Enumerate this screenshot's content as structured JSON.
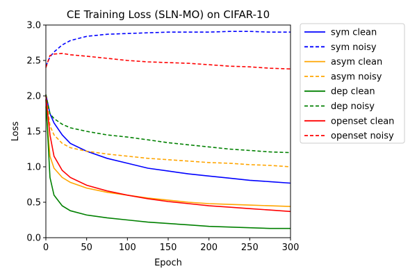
{
  "chart_data": {
    "type": "line",
    "title": "CE Training Loss (SLN-MO) on CIFAR-10",
    "xlabel": "Epoch",
    "ylabel": "Loss",
    "xlim": [
      0,
      300
    ],
    "ylim": [
      0.0,
      3.0
    ],
    "x_ticks": [
      0,
      50,
      100,
      150,
      200,
      250,
      300
    ],
    "y_ticks": [
      0.0,
      0.5,
      1.0,
      1.5,
      2.0,
      2.5,
      3.0
    ],
    "x_tick_labels": [
      "0",
      "50",
      "100",
      "150",
      "200",
      "250",
      "300"
    ],
    "y_tick_labels": [
      "0.0",
      "0.5",
      "1.0",
      "1.5",
      "2.0",
      "2.5",
      "3.0"
    ],
    "grid": false,
    "legend_position": "outside-right-top",
    "series": [
      {
        "name": "sym clean",
        "color": "#0000ff",
        "dashed": false,
        "x": [
          0,
          5,
          10,
          20,
          30,
          50,
          75,
          100,
          125,
          150,
          175,
          200,
          225,
          250,
          275,
          300
        ],
        "y": [
          2.02,
          1.75,
          1.62,
          1.45,
          1.33,
          1.22,
          1.12,
          1.05,
          0.98,
          0.94,
          0.9,
          0.87,
          0.84,
          0.81,
          0.79,
          0.77
        ]
      },
      {
        "name": "sym noisy",
        "color": "#0000ff",
        "dashed": true,
        "x": [
          0,
          5,
          10,
          20,
          30,
          50,
          75,
          100,
          125,
          150,
          175,
          200,
          225,
          250,
          275,
          300
        ],
        "y": [
          2.42,
          2.55,
          2.62,
          2.72,
          2.78,
          2.84,
          2.87,
          2.88,
          2.89,
          2.9,
          2.9,
          2.9,
          2.91,
          2.91,
          2.9,
          2.9
        ]
      },
      {
        "name": "asym clean",
        "color": "#ffa500",
        "dashed": false,
        "x": [
          0,
          5,
          10,
          20,
          30,
          50,
          75,
          100,
          125,
          150,
          175,
          200,
          225,
          250,
          275,
          300
        ],
        "y": [
          1.85,
          1.15,
          0.98,
          0.85,
          0.78,
          0.7,
          0.64,
          0.6,
          0.56,
          0.53,
          0.5,
          0.48,
          0.47,
          0.46,
          0.45,
          0.44
        ]
      },
      {
        "name": "asym noisy",
        "color": "#ffa500",
        "dashed": true,
        "x": [
          0,
          5,
          10,
          20,
          30,
          50,
          75,
          100,
          125,
          150,
          175,
          200,
          225,
          250,
          275,
          300
        ],
        "y": [
          2.02,
          1.58,
          1.45,
          1.33,
          1.27,
          1.22,
          1.18,
          1.15,
          1.12,
          1.1,
          1.08,
          1.06,
          1.05,
          1.03,
          1.02,
          1.0
        ]
      },
      {
        "name": "dep clean",
        "color": "#008000",
        "dashed": false,
        "x": [
          0,
          5,
          10,
          20,
          30,
          50,
          75,
          100,
          125,
          150,
          175,
          200,
          225,
          250,
          275,
          300
        ],
        "y": [
          1.95,
          0.85,
          0.6,
          0.45,
          0.38,
          0.32,
          0.28,
          0.25,
          0.22,
          0.2,
          0.18,
          0.16,
          0.15,
          0.14,
          0.13,
          0.13
        ]
      },
      {
        "name": "dep noisy",
        "color": "#008000",
        "dashed": true,
        "x": [
          0,
          5,
          10,
          20,
          30,
          50,
          75,
          100,
          125,
          150,
          175,
          200,
          225,
          250,
          275,
          300
        ],
        "y": [
          2.02,
          1.75,
          1.68,
          1.6,
          1.55,
          1.5,
          1.45,
          1.42,
          1.38,
          1.34,
          1.31,
          1.28,
          1.25,
          1.23,
          1.21,
          1.2
        ]
      },
      {
        "name": "openset clean",
        "color": "#ff0000",
        "dashed": false,
        "x": [
          0,
          5,
          10,
          20,
          30,
          50,
          75,
          100,
          125,
          150,
          175,
          200,
          225,
          250,
          275,
          300
        ],
        "y": [
          2.0,
          1.45,
          1.15,
          0.95,
          0.85,
          0.74,
          0.66,
          0.6,
          0.55,
          0.51,
          0.48,
          0.45,
          0.43,
          0.41,
          0.39,
          0.37
        ]
      },
      {
        "name": "openset noisy",
        "color": "#ff0000",
        "dashed": true,
        "x": [
          0,
          5,
          10,
          20,
          30,
          50,
          75,
          100,
          125,
          150,
          175,
          200,
          225,
          250,
          275,
          300
        ],
        "y": [
          2.4,
          2.57,
          2.59,
          2.6,
          2.58,
          2.56,
          2.53,
          2.5,
          2.48,
          2.47,
          2.46,
          2.44,
          2.42,
          2.41,
          2.39,
          2.38
        ]
      }
    ]
  }
}
